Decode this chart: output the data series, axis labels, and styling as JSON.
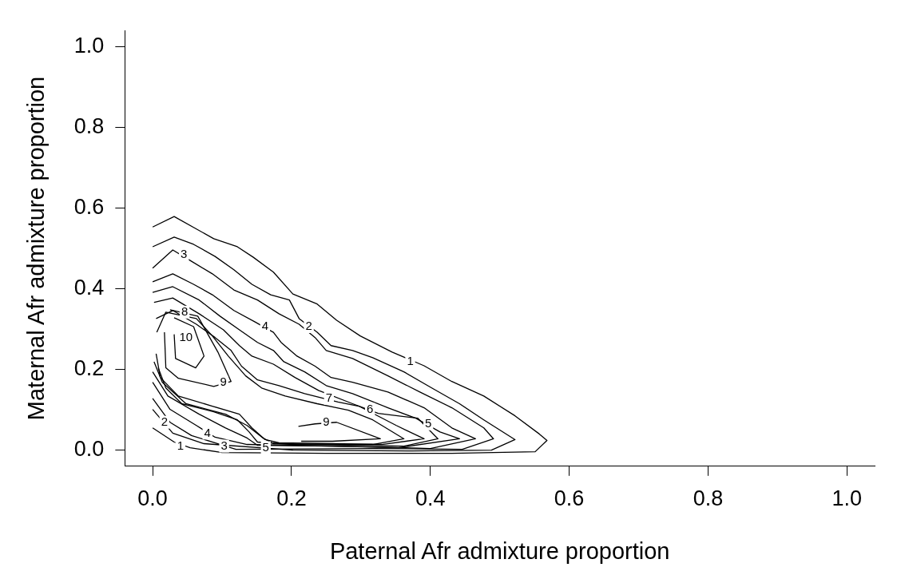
{
  "chart_data": {
    "type": "line",
    "xlabel": "Paternal Afr admixture proportion",
    "ylabel": "Maternal Afr admixture proportion",
    "xlim": [
      -0.04,
      1.04
    ],
    "ylim": [
      -0.04,
      1.04
    ],
    "xticks": [
      {
        "value": 0,
        "label": "0.0"
      },
      0.2,
      0.4,
      0.6,
      0.8,
      {
        "value": 1,
        "label": "1.0"
      }
    ],
    "yticks": [
      {
        "value": 0,
        "label": "0.0"
      },
      0.2,
      0.4,
      0.6,
      0.8,
      {
        "value": 1,
        "label": "1.0"
      }
    ],
    "grid": false,
    "legend": false,
    "marker": "none",
    "line_style": "solid",
    "series": [
      {
        "color": "#000000",
        "x": [
          0,
          0.031,
          0.088,
          0.122,
          0.145,
          0.174,
          0.202,
          0.237,
          0.265,
          0.299,
          0.345,
          0.391,
          0.431,
          0.477,
          0.522,
          0.557,
          0.568,
          0.551,
          0.431,
          0.25,
          0.1,
          0.054,
          0.031,
          0
        ],
        "values": [
          0.553,
          0.579,
          0.524,
          0.504,
          0.478,
          0.441,
          0.387,
          0.362,
          0.322,
          0.283,
          0.243,
          0.209,
          0.17,
          0.134,
          0.085,
          0.04,
          0.024,
          -0.004,
          -0.008,
          -0.008,
          -0.006,
          0.006,
          0.02,
          0.055
        ]
      },
      {
        "color": "#000000",
        "x": [
          0,
          0.031,
          0.059,
          0.09,
          0.117,
          0.143,
          0.17,
          0.197,
          0.211,
          0.237,
          0.257,
          0.288,
          0.317,
          0.362,
          0.402,
          0.442,
          0.477,
          0.522,
          0.488,
          0.374,
          0.202,
          0.074,
          0.029,
          0
        ],
        "values": [
          0.504,
          0.528,
          0.51,
          0.48,
          0.447,
          0.411,
          0.385,
          0.372,
          0.326,
          0.292,
          0.259,
          0.247,
          0.229,
          0.194,
          0.154,
          0.115,
          0.075,
          0.026,
          0,
          -0.002,
          0,
          0.016,
          0.042,
          0.101
        ]
      },
      {
        "color": "#000000",
        "x": [
          0,
          0.029,
          0.054,
          0.086,
          0.117,
          0.151,
          0.182,
          0.211,
          0.234,
          0.25,
          0.288,
          0.339,
          0.385,
          0.431,
          0.477,
          0.491,
          0.446,
          0.317,
          0.12,
          0.094,
          0.056,
          0.025,
          0
        ],
        "values": [
          0.451,
          0.496,
          0.47,
          0.437,
          0.397,
          0.372,
          0.338,
          0.312,
          0.279,
          0.247,
          0.227,
          0.184,
          0.144,
          0.105,
          0.055,
          0.028,
          0.002,
          0.004,
          0.002,
          0.016,
          0.036,
          0.069,
          0.128
        ]
      },
      {
        "color": "#000000",
        "x": [
          0,
          0.029,
          0.059,
          0.086,
          0.117,
          0.147,
          0.174,
          0.185,
          0.208,
          0.234,
          0.257,
          0.288,
          0.339,
          0.391,
          0.431,
          0.465,
          0.4,
          0.317,
          0.136,
          0.09,
          0.063,
          0.025,
          0
        ],
        "values": [
          0.417,
          0.437,
          0.411,
          0.385,
          0.346,
          0.318,
          0.292,
          0.267,
          0.233,
          0.208,
          0.18,
          0.168,
          0.144,
          0.105,
          0.055,
          0.028,
          0.004,
          0.008,
          0.014,
          0.032,
          0.061,
          0.101,
          0.168
        ]
      },
      {
        "color": "#000000",
        "x": [
          0,
          0.029,
          0.067,
          0.097,
          0.125,
          0.151,
          0.174,
          0.189,
          0.219,
          0.25,
          0.288,
          0.339,
          0.379,
          0.414,
          0.442,
          0.354,
          0.259,
          0.151,
          0.136,
          0.105,
          0.067,
          0.022,
          0
        ],
        "values": [
          0.391,
          0.405,
          0.372,
          0.332,
          0.298,
          0.267,
          0.247,
          0.219,
          0.194,
          0.16,
          0.14,
          0.105,
          0.079,
          0.045,
          0.028,
          0.006,
          0.01,
          0.012,
          0.03,
          0.055,
          0.089,
          0.134,
          0.194
        ]
      },
      {
        "color": "#000000",
        "x": [
          0.002,
          0.029,
          0.067,
          0.102,
          0.125,
          0.143,
          0.174,
          0.205,
          0.239,
          0.288,
          0.325,
          0.382,
          0.411,
          0.362,
          0.174,
          0.159,
          0.136,
          0.105,
          0.048,
          0.014,
          0.002
        ],
        "values": [
          0.366,
          0.377,
          0.338,
          0.298,
          0.259,
          0.233,
          0.213,
          0.18,
          0.148,
          0.115,
          0.091,
          0.079,
          0.028,
          0.01,
          0.016,
          0.03,
          0.061,
          0.089,
          0.115,
          0.168,
          0.219
        ]
      },
      {
        "color": "#000000",
        "x": [
          0.005,
          0.029,
          0.063,
          0.09,
          0.113,
          0.128,
          0.151,
          0.182,
          0.219,
          0.267,
          0.297,
          0.351,
          0.391,
          0.33,
          0.182,
          0.162,
          0.143,
          0.125,
          0.086,
          0.037,
          0.011,
          0.005
        ],
        "values": [
          0.326,
          0.346,
          0.312,
          0.279,
          0.247,
          0.208,
          0.174,
          0.16,
          0.14,
          0.119,
          0.109,
          0.061,
          0.028,
          0.014,
          0.018,
          0.026,
          0.055,
          0.089,
          0.109,
          0.134,
          0.18,
          0.239
        ]
      },
      {
        "color": "#000000",
        "x": [
          0.006,
          0.019,
          0.063,
          0.086,
          0.109,
          0.134,
          0.157,
          0.191,
          0.237,
          0.282,
          0.317,
          0.362,
          0.317,
          0.202,
          0.151,
          0.139,
          0.122,
          0.088,
          0.042,
          0.019,
          0.008
        ],
        "values": [
          0.292,
          0.342,
          0.326,
          0.283,
          0.233,
          0.184,
          0.154,
          0.134,
          0.115,
          0.099,
          0.075,
          0.028,
          0.014,
          0.014,
          0.02,
          0.045,
          0.075,
          0.095,
          0.115,
          0.154,
          0.204
        ]
      },
      {
        "color": "#000000",
        "x": [
          0.025,
          0.065,
          0.094,
          0.113,
          0.088,
          0.037,
          0.019,
          0.017
        ],
        "values": [
          0.348,
          0.332,
          0.243,
          0.17,
          0.158,
          0.178,
          0.204,
          0.292
        ]
      },
      {
        "color": "#000000",
        "x": [
          0.031,
          0.059,
          0.074,
          0.062,
          0.033,
          0.031
        ],
        "values": [
          0.328,
          0.306,
          0.233,
          0.204,
          0.227,
          0.287
        ]
      },
      {
        "color": "#000000",
        "x": [
          0.21,
          0.234,
          0.265,
          0.328,
          0.259,
          0.214
        ],
        "values": [
          0.059,
          0.065,
          0.069,
          0.028,
          0.022,
          0.022
        ]
      }
    ],
    "annotations": [
      {
        "text": "1",
        "x": 0.371,
        "y": 0.219
      },
      {
        "text": "1",
        "x": 0.04,
        "y": 0.01
      },
      {
        "text": "2",
        "x": 0.225,
        "y": 0.306
      },
      {
        "text": "2",
        "x": 0.017,
        "y": 0.069
      },
      {
        "text": "3",
        "x": 0.045,
        "y": 0.484
      },
      {
        "text": "3",
        "x": 0.103,
        "y": 0.01
      },
      {
        "text": "4",
        "x": 0.162,
        "y": 0.306
      },
      {
        "text": "4",
        "x": 0.079,
        "y": 0.042
      },
      {
        "text": "5",
        "x": 0.397,
        "y": 0.065
      },
      {
        "text": "5",
        "x": 0.163,
        "y": 0.006
      },
      {
        "text": "6",
        "x": 0.313,
        "y": 0.101
      },
      {
        "text": "7",
        "x": 0.254,
        "y": 0.128
      },
      {
        "text": "8",
        "x": 0.046,
        "y": 0.342
      },
      {
        "text": "9",
        "x": 0.102,
        "y": 0.168
      },
      {
        "text": "9",
        "x": 0.25,
        "y": 0.069
      },
      {
        "text": "10",
        "x": 0.048,
        "y": 0.279
      }
    ]
  }
}
